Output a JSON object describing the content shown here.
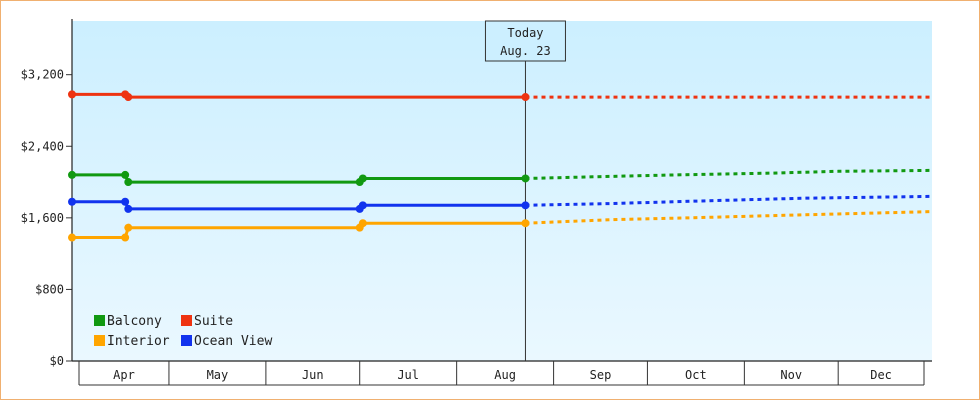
{
  "chart_data": {
    "type": "line",
    "title": "",
    "xlabel": "",
    "ylabel": "",
    "x_domain": [
      "2023-03-31",
      "2023-12-31"
    ],
    "ylim": [
      0,
      3800
    ],
    "y_ticks": [
      0,
      800,
      1600,
      2400,
      3200
    ],
    "y_tick_labels": [
      "$0",
      "$800",
      "$1,600",
      "$2,400",
      "$3,200"
    ],
    "x_tick_labels": [
      "Apr",
      "May",
      "Jun",
      "Jul",
      "Aug",
      "Sep",
      "Oct",
      "Nov",
      "Dec"
    ],
    "month_starts": [
      "2023-04-01",
      "2023-05-01",
      "2023-06-01",
      "2023-07-01",
      "2023-08-01",
      "2023-09-01",
      "2023-10-01",
      "2023-11-01",
      "2023-12-01",
      "2024-01-01"
    ],
    "today_date": "2023-08-23",
    "today_label": [
      "Today",
      "Aug. 23"
    ],
    "grid": false,
    "legend_position": "bottom-left",
    "series": [
      {
        "name": "Balcony",
        "color": "#119911",
        "history": [
          [
            "2023-03-31",
            2080
          ],
          [
            "2023-04-17",
            2080
          ],
          [
            "2023-04-18",
            2000
          ],
          [
            "2023-07-01",
            2000
          ],
          [
            "2023-07-02",
            2040
          ],
          [
            "2023-08-23",
            2040
          ]
        ],
        "forecast": [
          [
            "2023-08-23",
            2040
          ],
          [
            "2023-09-15",
            2060
          ],
          [
            "2023-10-10",
            2080
          ],
          [
            "2023-11-10",
            2100
          ],
          [
            "2023-12-01",
            2120
          ],
          [
            "2023-12-31",
            2130
          ]
        ]
      },
      {
        "name": "Suite",
        "color": "#ee3311",
        "history": [
          [
            "2023-03-31",
            2980
          ],
          [
            "2023-04-17",
            2980
          ],
          [
            "2023-04-18",
            2950
          ],
          [
            "2023-08-23",
            2950
          ]
        ],
        "forecast": [
          [
            "2023-08-23",
            2950
          ],
          [
            "2023-12-31",
            2950
          ]
        ]
      },
      {
        "name": "Interior",
        "color": "#ffa500",
        "history": [
          [
            "2023-03-31",
            1380
          ],
          [
            "2023-04-17",
            1380
          ],
          [
            "2023-04-18",
            1490
          ],
          [
            "2023-07-01",
            1490
          ],
          [
            "2023-07-02",
            1540
          ],
          [
            "2023-08-23",
            1540
          ]
        ],
        "forecast": [
          [
            "2023-08-23",
            1540
          ],
          [
            "2023-09-20",
            1580
          ],
          [
            "2023-10-15",
            1600
          ],
          [
            "2023-11-15",
            1630
          ],
          [
            "2023-12-31",
            1670
          ]
        ]
      },
      {
        "name": "Ocean View",
        "color": "#1133ee",
        "history": [
          [
            "2023-03-31",
            1780
          ],
          [
            "2023-04-17",
            1780
          ],
          [
            "2023-04-18",
            1700
          ],
          [
            "2023-07-01",
            1700
          ],
          [
            "2023-07-02",
            1740
          ],
          [
            "2023-08-23",
            1740
          ]
        ],
        "forecast": [
          [
            "2023-08-23",
            1740
          ],
          [
            "2023-09-20",
            1760
          ],
          [
            "2023-10-20",
            1790
          ],
          [
            "2023-11-20",
            1820
          ],
          [
            "2023-12-31",
            1840
          ]
        ]
      }
    ]
  }
}
